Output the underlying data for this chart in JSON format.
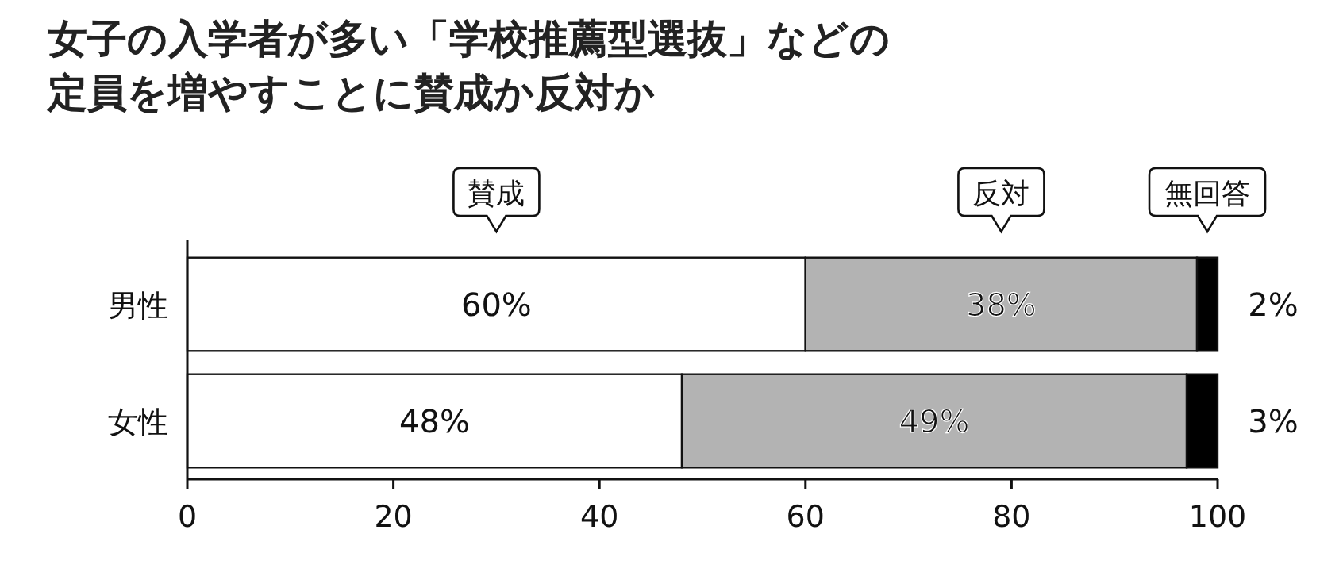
{
  "chart_data": {
    "type": "bar",
    "orientation": "horizontal",
    "stacked": true,
    "title": "女子の入学者が多い「学校推薦型選抜」などの定員を増やすことに賛成か反対か",
    "categories": [
      "男性",
      "女性"
    ],
    "series": [
      {
        "name": "賛成",
        "color": "#ffffff",
        "values": [
          60,
          48
        ],
        "value_labels": [
          "60%",
          "48%"
        ]
      },
      {
        "name": "反対",
        "color": "#b3b3b3",
        "values": [
          38,
          49
        ],
        "value_labels": [
          "38%",
          "49%"
        ]
      },
      {
        "name": "無回答",
        "color": "#000000",
        "values": [
          2,
          3
        ],
        "value_labels": [
          "2%",
          "3%"
        ]
      }
    ],
    "xlim": [
      0,
      100
    ],
    "xticks": [
      0,
      20,
      40,
      60,
      80,
      100
    ],
    "legend": "top",
    "grid": false
  }
}
